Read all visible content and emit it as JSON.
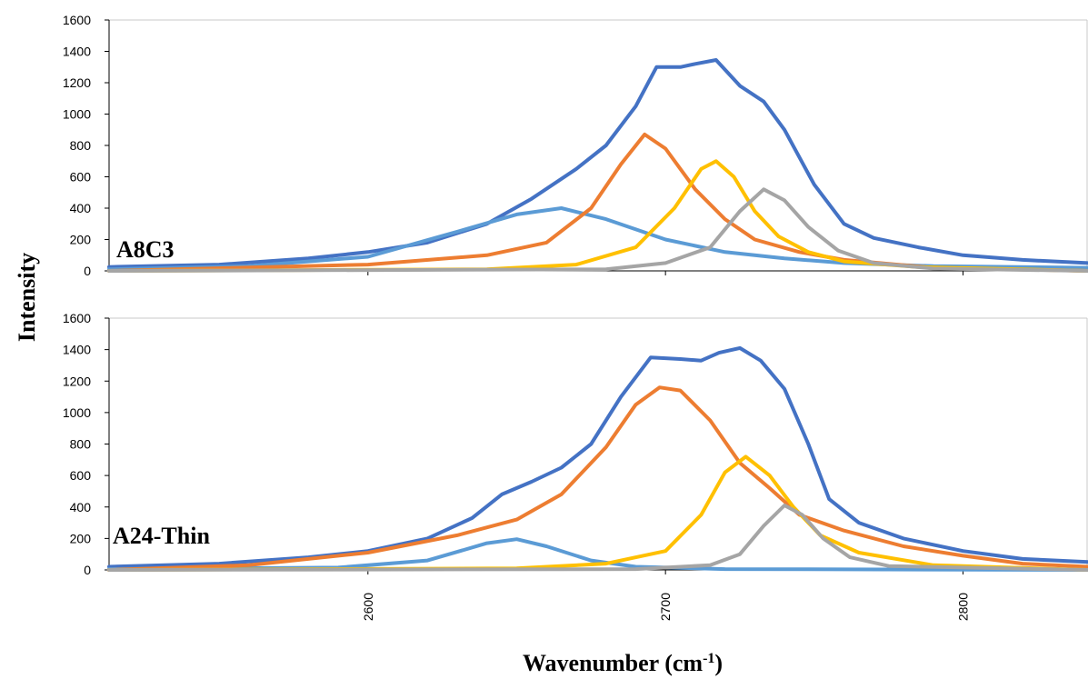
{
  "chart_data": {
    "type": "line",
    "xlabel_main": "Wavenumber (cm",
    "xlabel_sup": "-1",
    "xlabel_tail": ")",
    "ylabel": "Intensity",
    "xlim": [
      2513,
      2842
    ],
    "x_ticks": [
      2600,
      2700,
      2800
    ],
    "x_tick_labels": [
      "2600",
      "2700",
      "2800"
    ],
    "grid": false,
    "panels": [
      {
        "label": "A8C3",
        "ylim": [
          0,
          1600
        ],
        "y_ticks": [
          0,
          200,
          400,
          600,
          800,
          1000,
          1200,
          1400,
          1600
        ],
        "y_tick_labels": [
          "0",
          "200",
          "400",
          "600",
          "800",
          "1000",
          "1200",
          "1400",
          "1600"
        ],
        "series": [
          {
            "color": "#4472C4",
            "points": [
              [
                2513,
                25
              ],
              [
                2550,
                40
              ],
              [
                2580,
                80
              ],
              [
                2600,
                120
              ],
              [
                2620,
                180
              ],
              [
                2640,
                300
              ],
              [
                2655,
                460
              ],
              [
                2670,
                650
              ],
              [
                2680,
                800
              ],
              [
                2690,
                1050
              ],
              [
                2697,
                1300
              ],
              [
                2705,
                1300
              ],
              [
                2710,
                1320
              ],
              [
                2717,
                1345
              ],
              [
                2725,
                1180
              ],
              [
                2733,
                1080
              ],
              [
                2740,
                900
              ],
              [
                2750,
                550
              ],
              [
                2760,
                300
              ],
              [
                2770,
                210
              ],
              [
                2785,
                150
              ],
              [
                2800,
                100
              ],
              [
                2820,
                70
              ],
              [
                2842,
                50
              ]
            ]
          },
          {
            "color": "#5B9BD5",
            "points": [
              [
                2513,
                10
              ],
              [
                2560,
                30
              ],
              [
                2600,
                90
              ],
              [
                2630,
                250
              ],
              [
                2650,
                360
              ],
              [
                2665,
                400
              ],
              [
                2680,
                330
              ],
              [
                2700,
                200
              ],
              [
                2720,
                120
              ],
              [
                2740,
                80
              ],
              [
                2760,
                50
              ],
              [
                2790,
                30
              ],
              [
                2842,
                20
              ]
            ]
          },
          {
            "color": "#ED7D31",
            "points": [
              [
                2513,
                0
              ],
              [
                2600,
                40
              ],
              [
                2640,
                100
              ],
              [
                2660,
                180
              ],
              [
                2675,
                400
              ],
              [
                2685,
                680
              ],
              [
                2693,
                870
              ],
              [
                2700,
                780
              ],
              [
                2710,
                520
              ],
              [
                2720,
                330
              ],
              [
                2730,
                200
              ],
              [
                2745,
                120
              ],
              [
                2760,
                70
              ],
              [
                2790,
                20
              ],
              [
                2842,
                0
              ]
            ]
          },
          {
            "color": "#FFC000",
            "points": [
              [
                2513,
                0
              ],
              [
                2640,
                10
              ],
              [
                2670,
                40
              ],
              [
                2690,
                150
              ],
              [
                2703,
                400
              ],
              [
                2712,
                650
              ],
              [
                2717,
                700
              ],
              [
                2723,
                600
              ],
              [
                2730,
                380
              ],
              [
                2738,
                220
              ],
              [
                2748,
                120
              ],
              [
                2760,
                60
              ],
              [
                2785,
                25
              ],
              [
                2842,
                0
              ]
            ]
          },
          {
            "color": "#A5A5A5",
            "points": [
              [
                2513,
                0
              ],
              [
                2680,
                10
              ],
              [
                2700,
                50
              ],
              [
                2715,
                150
              ],
              [
                2725,
                380
              ],
              [
                2733,
                520
              ],
              [
                2740,
                450
              ],
              [
                2748,
                280
              ],
              [
                2758,
                130
              ],
              [
                2770,
                50
              ],
              [
                2790,
                15
              ],
              [
                2842,
                0
              ]
            ]
          }
        ]
      },
      {
        "label": "A24-Thin",
        "ylim": [
          0,
          1600
        ],
        "y_ticks": [
          0,
          200,
          400,
          600,
          800,
          1000,
          1200,
          1400,
          1600
        ],
        "y_tick_labels": [
          "0",
          "200",
          "400",
          "600",
          "800",
          "1000",
          "1200",
          "1400",
          "1600"
        ],
        "series": [
          {
            "color": "#4472C4",
            "points": [
              [
                2513,
                20
              ],
              [
                2550,
                40
              ],
              [
                2580,
                80
              ],
              [
                2600,
                120
              ],
              [
                2620,
                200
              ],
              [
                2635,
                330
              ],
              [
                2645,
                480
              ],
              [
                2655,
                560
              ],
              [
                2665,
                650
              ],
              [
                2675,
                800
              ],
              [
                2685,
                1100
              ],
              [
                2695,
                1350
              ],
              [
                2705,
                1340
              ],
              [
                2712,
                1330
              ],
              [
                2718,
                1380
              ],
              [
                2725,
                1410
              ],
              [
                2732,
                1330
              ],
              [
                2740,
                1150
              ],
              [
                2748,
                800
              ],
              [
                2755,
                450
              ],
              [
                2765,
                300
              ],
              [
                2780,
                200
              ],
              [
                2800,
                120
              ],
              [
                2820,
                70
              ],
              [
                2842,
                50
              ]
            ]
          },
          {
            "color": "#5B9BD5",
            "points": [
              [
                2513,
                5
              ],
              [
                2590,
                15
              ],
              [
                2620,
                60
              ],
              [
                2640,
                170
              ],
              [
                2650,
                195
              ],
              [
                2660,
                150
              ],
              [
                2675,
                60
              ],
              [
                2690,
                20
              ],
              [
                2720,
                5
              ],
              [
                2842,
                0
              ]
            ]
          },
          {
            "color": "#ED7D31",
            "points": [
              [
                2513,
                0
              ],
              [
                2560,
                30
              ],
              [
                2600,
                110
              ],
              [
                2630,
                220
              ],
              [
                2650,
                320
              ],
              [
                2665,
                480
              ],
              [
                2680,
                780
              ],
              [
                2690,
                1050
              ],
              [
                2698,
                1160
              ],
              [
                2705,
                1140
              ],
              [
                2715,
                950
              ],
              [
                2725,
                680
              ],
              [
                2735,
                520
              ],
              [
                2745,
                350
              ],
              [
                2760,
                250
              ],
              [
                2780,
                150
              ],
              [
                2800,
                90
              ],
              [
                2820,
                40
              ],
              [
                2842,
                20
              ]
            ]
          },
          {
            "color": "#FFC000",
            "points": [
              [
                2513,
                0
              ],
              [
                2650,
                10
              ],
              [
                2680,
                40
              ],
              [
                2700,
                120
              ],
              [
                2712,
                350
              ],
              [
                2720,
                620
              ],
              [
                2727,
                720
              ],
              [
                2735,
                600
              ],
              [
                2743,
                400
              ],
              [
                2752,
                220
              ],
              [
                2765,
                110
              ],
              [
                2790,
                30
              ],
              [
                2842,
                0
              ]
            ]
          },
          {
            "color": "#A5A5A5",
            "points": [
              [
                2513,
                0
              ],
              [
                2690,
                5
              ],
              [
                2715,
                30
              ],
              [
                2725,
                100
              ],
              [
                2733,
                280
              ],
              [
                2740,
                410
              ],
              [
                2746,
                350
              ],
              [
                2753,
                200
              ],
              [
                2762,
                80
              ],
              [
                2775,
                25
              ],
              [
                2842,
                0
              ]
            ]
          }
        ]
      }
    ]
  }
}
